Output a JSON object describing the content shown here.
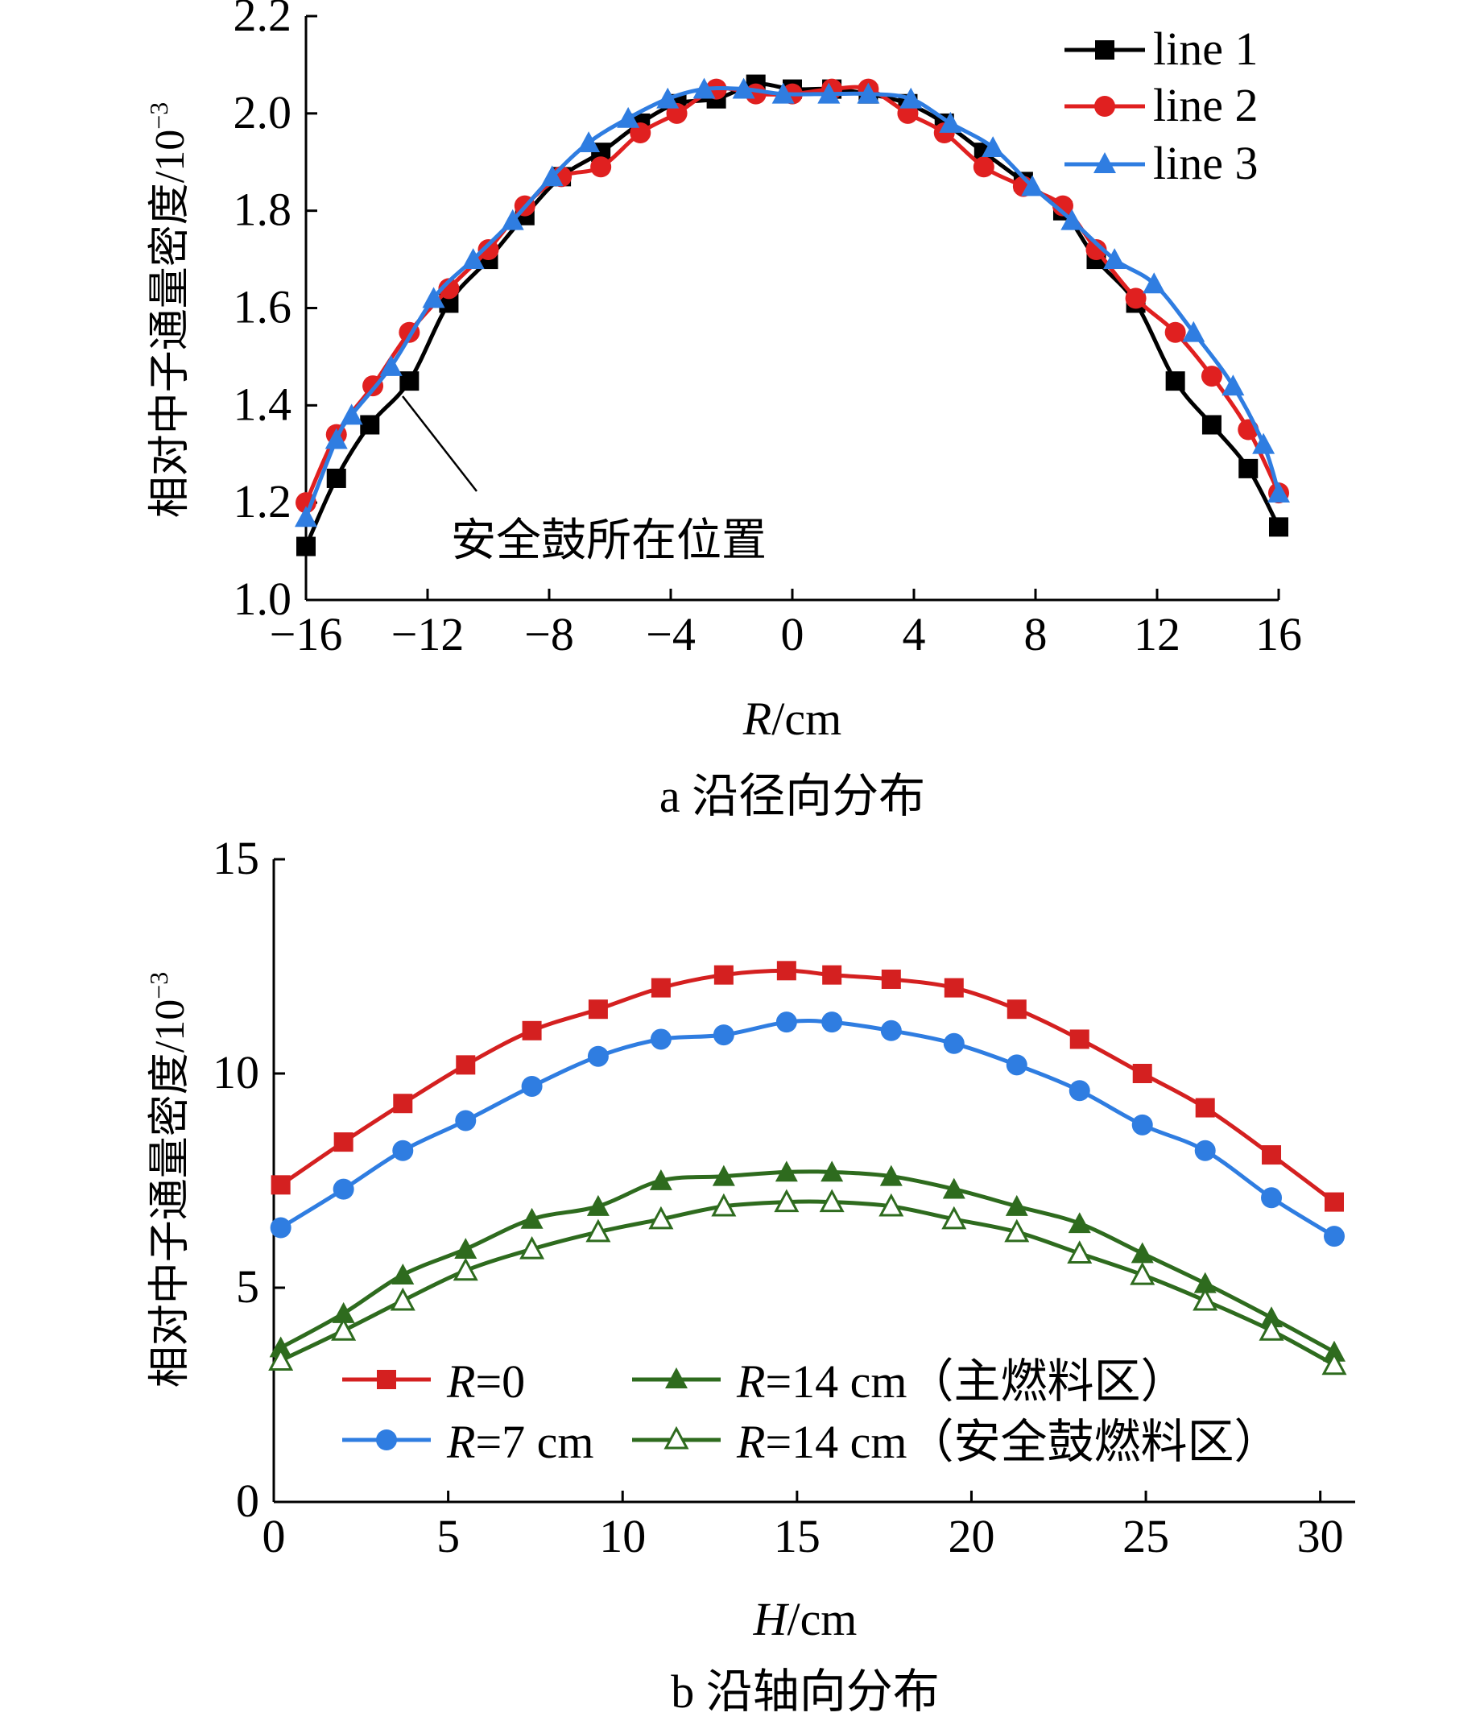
{
  "chart_data": [
    {
      "type": "line",
      "caption": "a 沿径向分布",
      "xlabel_italic": "R",
      "xlabel_unit": "/cm",
      "ylabel": "相对中子通量密度/10",
      "ylabel_exp": "−3",
      "xlim": [
        -16,
        16
      ],
      "ylim": [
        1.0,
        2.2
      ],
      "xticks": [
        -16,
        -12,
        -8,
        -4,
        0,
        4,
        8,
        12,
        16
      ],
      "xtick_labels": [
        "−16",
        "−12",
        "−8",
        "−4",
        "0",
        "4",
        "8",
        "12",
        "16"
      ],
      "yticks": [
        1.0,
        1.2,
        1.4,
        1.6,
        1.8,
        2.0,
        2.2
      ],
      "ytick_labels": [
        "1.0",
        "1.2",
        "1.4",
        "1.6",
        "1.8",
        "2.0",
        "2.2"
      ],
      "grid": false,
      "legend_position": "top-right",
      "annotation": {
        "text": "安全鼓所在位置",
        "x": -13,
        "y": 1.42
      },
      "series": [
        {
          "name": "line 1",
          "color": "#000000",
          "marker": "square",
          "x": [
            -16,
            -15,
            -13.9,
            -12.6,
            -11.3,
            -10,
            -8.8,
            -7.6,
            -6.3,
            -5,
            -3.8,
            -2.5,
            -1.2,
            0,
            1.3,
            2.5,
            3.8,
            5,
            6.3,
            7.6,
            8.9,
            10,
            11.3,
            12.6,
            13.8,
            15,
            16
          ],
          "y": [
            1.11,
            1.25,
            1.36,
            1.45,
            1.61,
            1.7,
            1.79,
            1.87,
            1.92,
            1.98,
            2.02,
            2.03,
            2.06,
            2.05,
            2.05,
            2.04,
            2.02,
            1.98,
            1.92,
            1.86,
            1.8,
            1.7,
            1.61,
            1.45,
            1.36,
            1.27,
            1.15
          ]
        },
        {
          "name": "line 2",
          "color": "#e02020",
          "marker": "circle",
          "x": [
            -16,
            -15,
            -13.8,
            -12.6,
            -11.3,
            -10,
            -8.8,
            -7.6,
            -6.3,
            -5,
            -3.8,
            -2.5,
            -1.2,
            0,
            1.3,
            2.5,
            3.8,
            5,
            6.3,
            7.6,
            8.9,
            10,
            11.3,
            12.6,
            13.8,
            15,
            16
          ],
          "y": [
            1.2,
            1.34,
            1.44,
            1.55,
            1.64,
            1.72,
            1.81,
            1.87,
            1.89,
            1.96,
            2.0,
            2.05,
            2.04,
            2.04,
            2.05,
            2.05,
            2.0,
            1.96,
            1.89,
            1.85,
            1.81,
            1.72,
            1.62,
            1.55,
            1.46,
            1.35,
            1.22
          ]
        },
        {
          "name": "line 3",
          "color": "#2f7de1",
          "marker": "triangle",
          "x": [
            -16,
            -15,
            -14.5,
            -13.2,
            -11.8,
            -10.5,
            -9.2,
            -7.9,
            -6.7,
            -5.4,
            -4.1,
            -2.9,
            -1.6,
            -0.3,
            1.2,
            2.5,
            3.9,
            5.2,
            6.6,
            7.9,
            9.2,
            10.6,
            11.9,
            13.2,
            14.5,
            15.5,
            16
          ],
          "y": [
            1.17,
            1.33,
            1.38,
            1.48,
            1.62,
            1.7,
            1.78,
            1.87,
            1.94,
            1.99,
            2.03,
            2.05,
            2.05,
            2.04,
            2.04,
            2.04,
            2.03,
            1.98,
            1.93,
            1.85,
            1.78,
            1.7,
            1.65,
            1.55,
            1.44,
            1.32,
            1.22
          ]
        }
      ]
    },
    {
      "type": "line",
      "caption": "b 沿轴向分布",
      "xlabel_italic": "H",
      "xlabel_unit": "/cm",
      "ylabel": "相对中子通量密度/10",
      "ylabel_exp": "−3",
      "xlim": [
        0,
        31
      ],
      "ylim": [
        0,
        15
      ],
      "xticks": [
        0,
        5,
        10,
        15,
        20,
        25,
        30
      ],
      "xtick_labels": [
        "0",
        "5",
        "10",
        "15",
        "20",
        "25",
        "30"
      ],
      "yticks": [
        0,
        5,
        10,
        15
      ],
      "ytick_labels": [
        "0",
        "5",
        "10",
        "15"
      ],
      "grid": false,
      "legend_position": "bottom",
      "series": [
        {
          "label_italic": "R",
          "label_rest": "=0",
          "color": "#d42020",
          "marker": "square",
          "marker_fill": "filled",
          "x": [
            0.2,
            2,
            3.7,
            5.5,
            7.4,
            9.3,
            11.1,
            12.9,
            14.7,
            16,
            17.7,
            19.5,
            21.3,
            23.1,
            24.9,
            26.7,
            28.6,
            30.4
          ],
          "y": [
            7.4,
            8.4,
            9.3,
            10.2,
            11.0,
            11.5,
            12.0,
            12.3,
            12.4,
            12.3,
            12.2,
            12.0,
            11.5,
            10.8,
            10.0,
            9.2,
            8.1,
            7.0
          ]
        },
        {
          "label_italic": "R",
          "label_rest": "=7 cm",
          "color": "#2f7de1",
          "marker": "circle",
          "marker_fill": "filled",
          "x": [
            0.2,
            2,
            3.7,
            5.5,
            7.4,
            9.3,
            11.1,
            12.9,
            14.7,
            16,
            17.7,
            19.5,
            21.3,
            23.1,
            24.9,
            26.7,
            28.6,
            30.4
          ],
          "y": [
            6.4,
            7.3,
            8.2,
            8.9,
            9.7,
            10.4,
            10.8,
            10.9,
            11.2,
            11.2,
            11.0,
            10.7,
            10.2,
            9.6,
            8.8,
            8.2,
            7.1,
            6.2
          ]
        },
        {
          "label_italic": "R",
          "label_rest": "=14 cm（主燃料区）",
          "color": "#2e6b1e",
          "marker": "triangle",
          "marker_fill": "filled",
          "x": [
            0.2,
            2,
            3.7,
            5.5,
            7.4,
            9.3,
            11.1,
            12.9,
            14.7,
            16,
            17.7,
            19.5,
            21.3,
            23.1,
            24.9,
            26.7,
            28.6,
            30.4
          ],
          "y": [
            3.6,
            4.4,
            5.3,
            5.9,
            6.6,
            6.9,
            7.5,
            7.6,
            7.7,
            7.7,
            7.6,
            7.3,
            6.9,
            6.5,
            5.8,
            5.1,
            4.3,
            3.5
          ]
        },
        {
          "label_italic": "R",
          "label_rest": "=14 cm（安全鼓燃料区）",
          "color": "#2e6b1e",
          "marker": "triangle",
          "marker_fill": "open",
          "x": [
            0.2,
            2,
            3.7,
            5.5,
            7.4,
            9.3,
            11.1,
            12.9,
            14.7,
            16,
            17.7,
            19.5,
            21.3,
            23.1,
            24.9,
            26.7,
            28.6,
            30.4
          ],
          "y": [
            3.3,
            4.0,
            4.7,
            5.4,
            5.9,
            6.3,
            6.6,
            6.9,
            7.0,
            7.0,
            6.9,
            6.6,
            6.3,
            5.8,
            5.3,
            4.7,
            4.0,
            3.2
          ]
        }
      ]
    }
  ]
}
